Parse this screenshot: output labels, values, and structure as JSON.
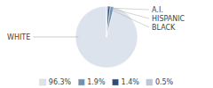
{
  "chart_data": {
    "type": "pie",
    "categories": [
      "WHITE",
      "A.I.",
      "HISPANIC",
      "BLACK"
    ],
    "values": [
      96.3,
      1.9,
      1.4,
      0.5
    ],
    "value_labels": [
      "96.3%",
      "1.9%",
      "1.4%",
      "0.5%"
    ],
    "colors": [
      "#dce3ec",
      "#7191b0",
      "#2e4d75",
      "#bcc8d8"
    ],
    "legend": "bottom"
  }
}
